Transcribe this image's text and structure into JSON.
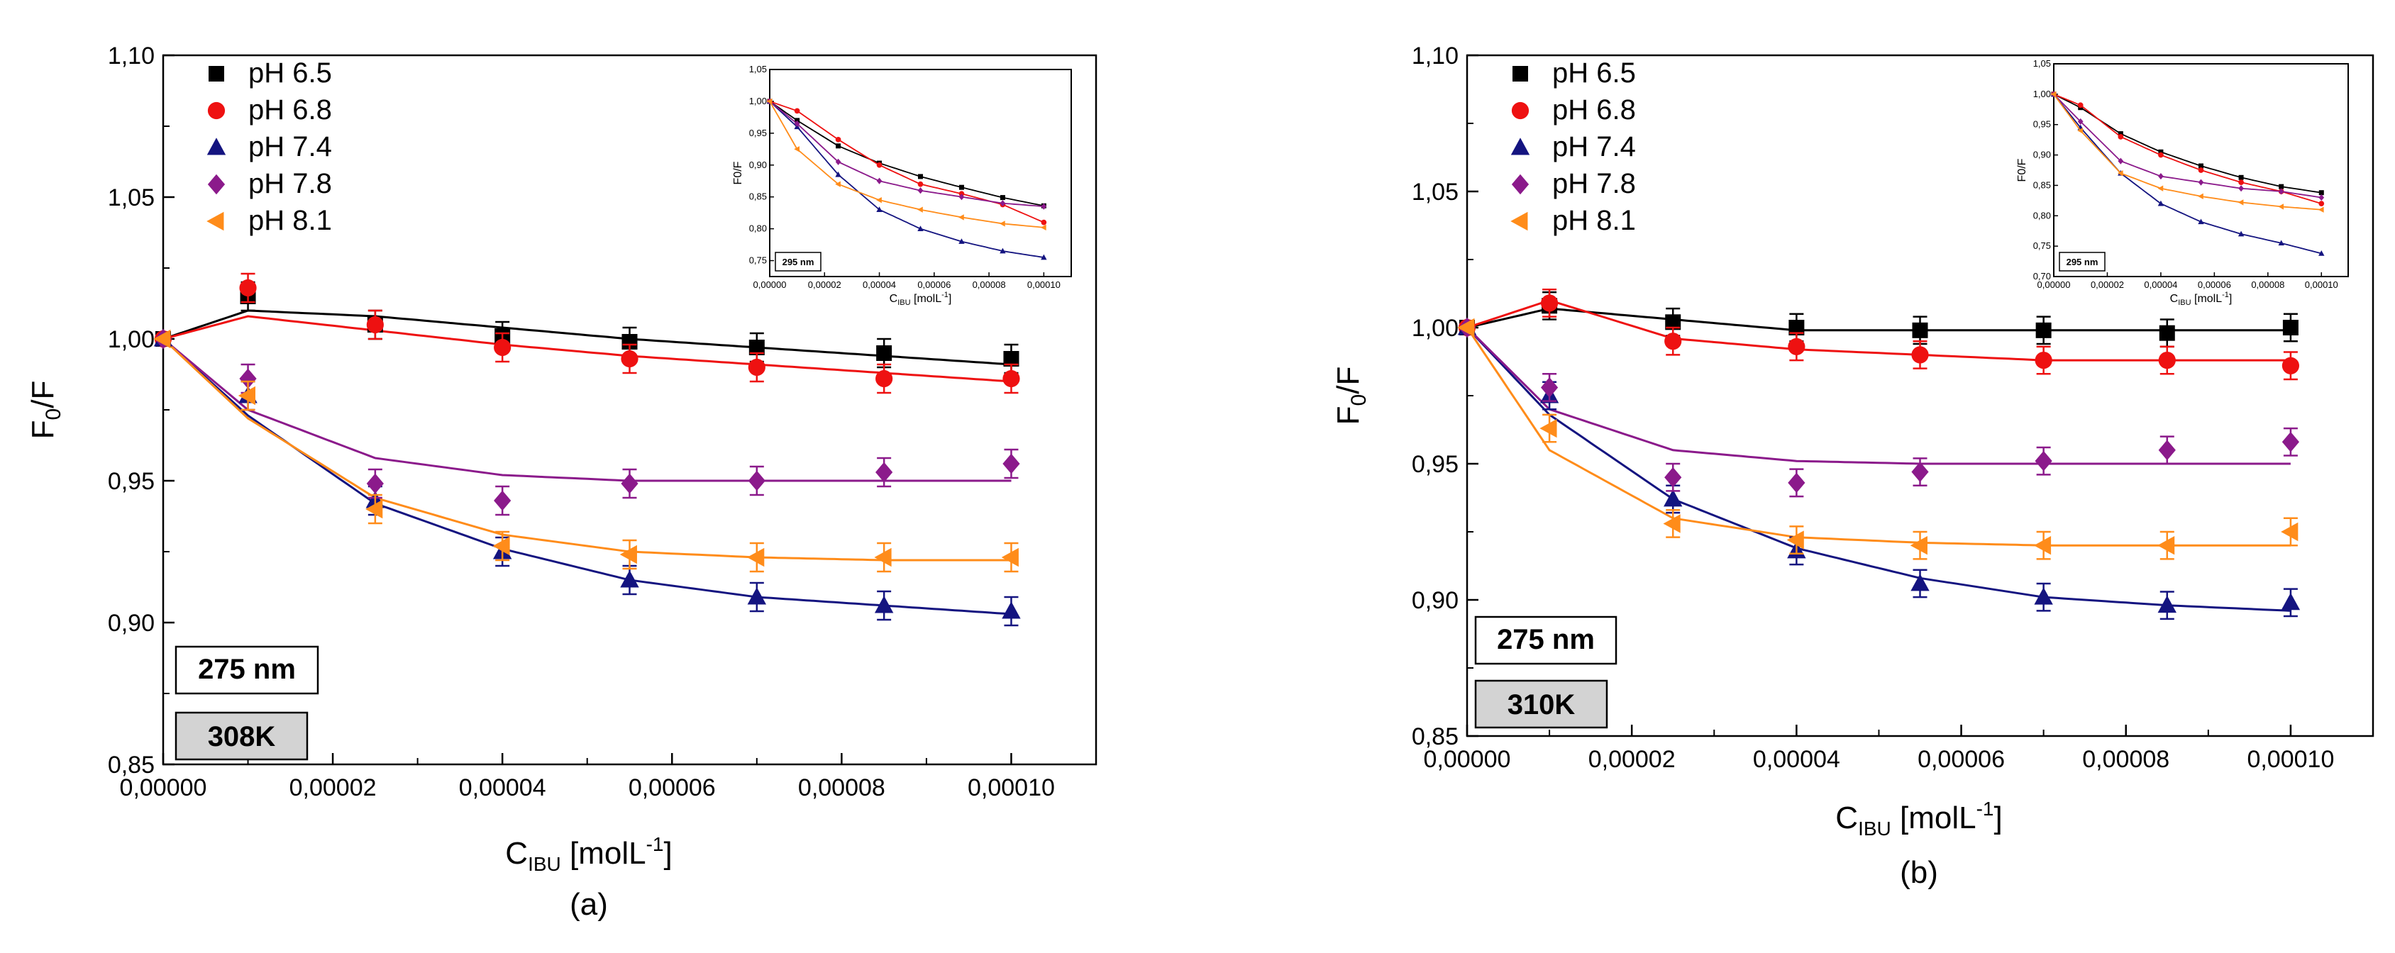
{
  "colors": {
    "pH 6.5": "#000000",
    "pH 6.8": "#ee1111",
    "pH 7.4": "#141480",
    "pH 7.8": "#8b1a8b",
    "pH 8.1": "#ff8c1a",
    "temp_box": "#d3d3d3"
  },
  "chart_data": [
    {
      "type": "scatter",
      "panel": "(a)",
      "xlabel_main": "C",
      "xlabel_sub": "IBU",
      "xlabel_unit": " [molL",
      "xlabel_sup": "-1",
      "xlabel_end": "]",
      "ylabel_main": "F",
      "ylabel_sub": "0",
      "ylabel_end": "/F",
      "xlim": [
        0,
        0.00011
      ],
      "ylim": [
        0.85,
        1.1
      ],
      "xticks": [
        0,
        2e-05,
        4e-05,
        6e-05,
        8e-05,
        0.0001
      ],
      "xtick_labels": [
        "0,00000",
        "0,00002",
        "0,00004",
        "0,00006",
        "0,00008",
        "0,00010"
      ],
      "yticks": [
        0.85,
        0.9,
        0.95,
        1.0,
        1.05,
        1.1
      ],
      "ytick_labels": [
        "0,85",
        "0,90",
        "0,95",
        "1,00",
        "1,05",
        "1,10"
      ],
      "wavelength_label": "275 nm",
      "temperature_label": "308K",
      "legend_position": "top-left",
      "x": [
        0,
        1e-05,
        2.5e-05,
        4e-05,
        5.5e-05,
        7e-05,
        8.5e-05,
        0.0001
      ],
      "series": [
        {
          "name": "pH 6.5",
          "marker": "square",
          "values": [
            1.0,
            1.015,
            1.005,
            1.001,
            0.999,
            0.997,
            0.995,
            0.993
          ],
          "fit": [
            1.0,
            1.01,
            1.008,
            1.004,
            1.0,
            0.997,
            0.994,
            0.991
          ]
        },
        {
          "name": "pH 6.8",
          "marker": "circle",
          "values": [
            1.0,
            1.018,
            1.005,
            0.997,
            0.993,
            0.99,
            0.986,
            0.986
          ],
          "fit": [
            1.0,
            1.008,
            1.003,
            0.998,
            0.994,
            0.991,
            0.988,
            0.985
          ]
        },
        {
          "name": "pH 7.4",
          "marker": "triangle-up",
          "values": [
            1.0,
            0.98,
            0.943,
            0.925,
            0.915,
            0.909,
            0.906,
            0.904
          ],
          "fit": [
            1.0,
            0.973,
            0.942,
            0.926,
            0.915,
            0.909,
            0.906,
            0.903
          ]
        },
        {
          "name": "pH 7.8",
          "marker": "diamond",
          "values": [
            1.0,
            0.986,
            0.949,
            0.943,
            0.949,
            0.95,
            0.953,
            0.956
          ],
          "fit": [
            1.0,
            0.975,
            0.958,
            0.952,
            0.95,
            0.95,
            0.95,
            0.95
          ]
        },
        {
          "name": "pH 8.1",
          "marker": "triangle-left",
          "values": [
            1.0,
            0.98,
            0.94,
            0.927,
            0.924,
            0.923,
            0.923,
            0.923
          ],
          "fit": [
            1.0,
            0.972,
            0.944,
            0.931,
            0.925,
            0.923,
            0.922,
            0.922
          ]
        }
      ],
      "inset": {
        "xlabel_main": "C",
        "xlabel_sub": "IBU",
        "xlabel_unit": " [molL",
        "xlabel_sup": "-1",
        "xlabel_end": "]",
        "ylabel": "F0/F",
        "wavelength_label": "295 nm",
        "xlim": [
          0,
          0.00011
        ],
        "ylim": [
          0.725,
          1.05
        ],
        "xtick_labels": [
          "0,00000",
          "0,00002",
          "0,00004",
          "0,00006",
          "0,00008",
          "0,00010"
        ],
        "ytick_labels": [
          "0,75",
          "0,80",
          "0,85",
          "0,90",
          "0,95",
          "1,00",
          "1,05"
        ],
        "x": [
          0,
          1e-05,
          2.5e-05,
          4e-05,
          5.5e-05,
          7e-05,
          8.5e-05,
          0.0001
        ],
        "series": [
          {
            "name": "pH 6.5",
            "values": [
              1.0,
              0.97,
              0.93,
              0.903,
              0.882,
              0.865,
              0.849,
              0.836
            ]
          },
          {
            "name": "pH 6.8",
            "values": [
              1.0,
              0.985,
              0.94,
              0.9,
              0.87,
              0.855,
              0.838,
              0.81
            ]
          },
          {
            "name": "pH 7.4",
            "values": [
              1.0,
              0.96,
              0.885,
              0.83,
              0.8,
              0.78,
              0.765,
              0.755
            ]
          },
          {
            "name": "pH 7.8",
            "values": [
              1.0,
              0.965,
              0.905,
              0.875,
              0.86,
              0.85,
              0.84,
              0.835
            ]
          },
          {
            "name": "pH 8.1",
            "values": [
              1.0,
              0.925,
              0.87,
              0.845,
              0.83,
              0.818,
              0.808,
              0.802
            ]
          }
        ]
      }
    },
    {
      "type": "scatter",
      "panel": "(b)",
      "xlabel_main": "C",
      "xlabel_sub": "IBU",
      "xlabel_unit": " [molL",
      "xlabel_sup": "-1",
      "xlabel_end": "]",
      "ylabel_main": "F",
      "ylabel_sub": "0",
      "ylabel_end": "/F",
      "xlim": [
        0,
        0.00011
      ],
      "ylim": [
        0.85,
        1.1
      ],
      "xticks": [
        0,
        2e-05,
        4e-05,
        6e-05,
        8e-05,
        0.0001
      ],
      "xtick_labels": [
        "0,00000",
        "0,00002",
        "0,00004",
        "0,00006",
        "0,00008",
        "0,00010"
      ],
      "yticks": [
        0.85,
        0.9,
        0.95,
        1.0,
        1.05,
        1.1
      ],
      "ytick_labels": [
        "0,85",
        "0,90",
        "0,95",
        "1,00",
        "1,05",
        "1,10"
      ],
      "wavelength_label": "275 nm",
      "temperature_label": "310K",
      "legend_position": "top-left",
      "x": [
        0,
        1e-05,
        2.5e-05,
        4e-05,
        5.5e-05,
        7e-05,
        8.5e-05,
        0.0001
      ],
      "series": [
        {
          "name": "pH 6.5",
          "marker": "square",
          "values": [
            1.0,
            1.008,
            1.002,
            1.0,
            0.999,
            0.999,
            0.998,
            1.0
          ],
          "fit": [
            1.0,
            1.007,
            1.003,
            0.999,
            0.999,
            0.999,
            0.999,
            0.999
          ]
        },
        {
          "name": "pH 6.8",
          "marker": "circle",
          "values": [
            1.0,
            1.009,
            0.995,
            0.993,
            0.99,
            0.988,
            0.988,
            0.986
          ],
          "fit": [
            1.0,
            1.01,
            0.996,
            0.992,
            0.99,
            0.988,
            0.988,
            0.988
          ]
        },
        {
          "name": "pH 7.4",
          "marker": "triangle-up",
          "values": [
            1.0,
            0.975,
            0.937,
            0.918,
            0.906,
            0.901,
            0.898,
            0.899
          ],
          "fit": [
            1.0,
            0.968,
            0.937,
            0.919,
            0.908,
            0.901,
            0.898,
            0.896
          ]
        },
        {
          "name": "pH 7.8",
          "marker": "diamond",
          "values": [
            1.0,
            0.978,
            0.945,
            0.943,
            0.947,
            0.951,
            0.955,
            0.958
          ],
          "fit": [
            1.0,
            0.97,
            0.955,
            0.951,
            0.95,
            0.95,
            0.95,
            0.95
          ]
        },
        {
          "name": "pH 8.1",
          "marker": "triangle-left",
          "values": [
            1.0,
            0.963,
            0.928,
            0.922,
            0.92,
            0.92,
            0.92,
            0.925
          ],
          "fit": [
            1.0,
            0.955,
            0.93,
            0.923,
            0.921,
            0.92,
            0.92,
            0.92
          ]
        }
      ],
      "inset": {
        "xlabel_main": "C",
        "xlabel_sub": "IBU",
        "xlabel_unit": " [molL",
        "xlabel_sup": "-1",
        "xlabel_end": "]",
        "ylabel": "F0/F",
        "wavelength_label": "295 nm",
        "xlim": [
          0,
          0.00011
        ],
        "ylim": [
          0.7,
          1.05
        ],
        "xtick_labels": [
          "0,00000",
          "0,00002",
          "0,00004",
          "0,00006",
          "0,00008",
          "0,00010"
        ],
        "ytick_labels": [
          "0,70",
          "0,75",
          "0,80",
          "0,85",
          "0,90",
          "0,95",
          "1,00",
          "1,05"
        ],
        "x": [
          0,
          1e-05,
          2.5e-05,
          4e-05,
          5.5e-05,
          7e-05,
          8.5e-05,
          0.0001
        ],
        "series": [
          {
            "name": "pH 6.5",
            "values": [
              1.0,
              0.978,
              0.935,
              0.905,
              0.882,
              0.863,
              0.848,
              0.838
            ]
          },
          {
            "name": "pH 6.8",
            "values": [
              1.0,
              0.982,
              0.93,
              0.9,
              0.875,
              0.855,
              0.84,
              0.82
            ]
          },
          {
            "name": "pH 7.4",
            "values": [
              1.0,
              0.945,
              0.87,
              0.82,
              0.79,
              0.77,
              0.755,
              0.738
            ]
          },
          {
            "name": "pH 7.8",
            "values": [
              1.0,
              0.955,
              0.89,
              0.865,
              0.855,
              0.845,
              0.84,
              0.83
            ]
          },
          {
            "name": "pH 8.1",
            "values": [
              1.0,
              0.94,
              0.87,
              0.845,
              0.832,
              0.822,
              0.815,
              0.81
            ]
          }
        ]
      }
    }
  ]
}
